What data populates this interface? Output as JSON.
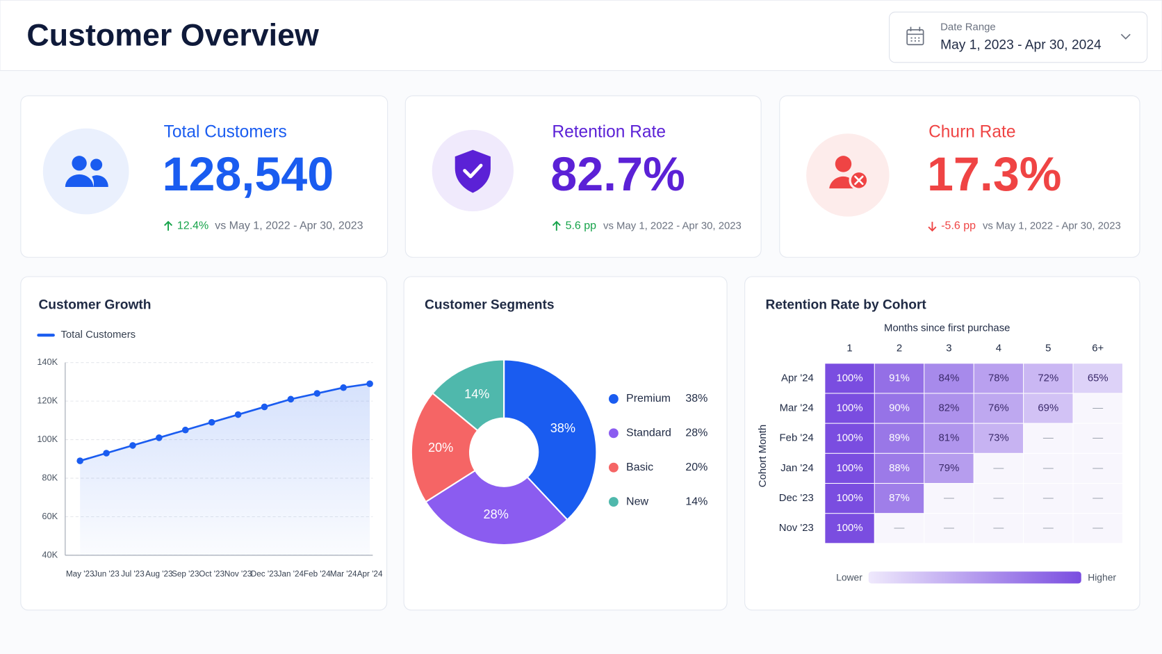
{
  "header": {
    "title": "Customer Overview",
    "date_range_label": "Date Range",
    "date_range": "May 1, 2023 - Apr 30, 2024"
  },
  "kpis": [
    {
      "title": "Total Customers",
      "value": "128,540",
      "delta": "12.4%",
      "comparison": "vs May 1, 2022 - Apr 30, 2023",
      "color": "#1a5cf0",
      "delta_color": "#16a34a",
      "direction": "up"
    },
    {
      "title": "Retention Rate",
      "value": "82.7%",
      "delta": "5.6 pp",
      "comparison": "vs May 1, 2022 - Apr 30, 2023",
      "color": "#5b21d6",
      "delta_color": "#16a34a",
      "direction": "up"
    },
    {
      "title": "Churn Rate",
      "value": "17.3%",
      "delta": "-5.6 pp",
      "comparison": "vs May 1, 2022 - Apr 30, 2023",
      "color": "#ef4444",
      "delta_color": "#ef4444",
      "direction": "down"
    }
  ],
  "chart_data": [
    {
      "type": "line",
      "title": "Customer Growth",
      "categories": [
        "May '23",
        "Jun '23",
        "Jul '23",
        "Aug '23",
        "Sep '23",
        "Oct '23",
        "Nov '23",
        "Dec '23",
        "Jan '24",
        "Feb '24",
        "Mar '24",
        "Apr '24"
      ],
      "series": [
        {
          "name": "Total Customers",
          "color": "#1a5cf0",
          "values": [
            89000,
            93000,
            97000,
            101000,
            105000,
            109000,
            113000,
            117000,
            121000,
            124000,
            127000,
            129000
          ]
        }
      ],
      "ylim": [
        40000,
        140000
      ],
      "yticks": [
        {
          "value": 40000,
          "label": "40K"
        },
        {
          "value": 60000,
          "label": "60K"
        },
        {
          "value": 80000,
          "label": "80K"
        },
        {
          "value": 100000,
          "label": "100K"
        },
        {
          "value": 120000,
          "label": "120K"
        },
        {
          "value": 140000,
          "label": "140K"
        }
      ],
      "grid": true,
      "area": true
    },
    {
      "type": "pie",
      "title": "Customer Segments",
      "donut": true,
      "categories": [
        "Premium",
        "Standard",
        "Basic",
        "New"
      ],
      "values": [
        38,
        28,
        20,
        14
      ],
      "value_labels": [
        "38%",
        "28%",
        "20%",
        "14%"
      ],
      "colors": [
        "#1a5cf0",
        "#8b5cf0",
        "#f56565",
        "#4fb8ac"
      ]
    },
    {
      "type": "heatmap",
      "title": "Retention Rate by Cohort",
      "x_label": "Months since first purchase",
      "y_label": "Cohort Month",
      "columns": [
        "1",
        "2",
        "3",
        "4",
        "5",
        "6+"
      ],
      "rows": [
        "Apr '24",
        "Mar '24",
        "Feb '24",
        "Jan '24",
        "Dec '23",
        "Nov '23"
      ],
      "values": [
        [
          100,
          91,
          84,
          78,
          72,
          65
        ],
        [
          100,
          90,
          82,
          76,
          69,
          null
        ],
        [
          100,
          89,
          81,
          73,
          null,
          null
        ],
        [
          100,
          88,
          79,
          null,
          null,
          null
        ],
        [
          100,
          87,
          null,
          null,
          null,
          null
        ],
        [
          100,
          null,
          null,
          null,
          null,
          null
        ]
      ],
      "value_labels": [
        [
          "100%",
          "91%",
          "84%",
          "78%",
          "72%",
          "65%"
        ],
        [
          "100%",
          "90%",
          "82%",
          "76%",
          "69%",
          "—"
        ],
        [
          "100%",
          "89%",
          "81%",
          "73%",
          "—",
          "—"
        ],
        [
          "100%",
          "88%",
          "79%",
          "—",
          "—",
          "—"
        ],
        [
          "100%",
          "87%",
          "—",
          "—",
          "—",
          "—"
        ],
        [
          "100%",
          "—",
          "—",
          "—",
          "—",
          "—"
        ]
      ],
      "colors": [
        "#efe9fc",
        "#7a4de0"
      ],
      "legend_labels": [
        "Lower",
        "Higher"
      ]
    }
  ]
}
